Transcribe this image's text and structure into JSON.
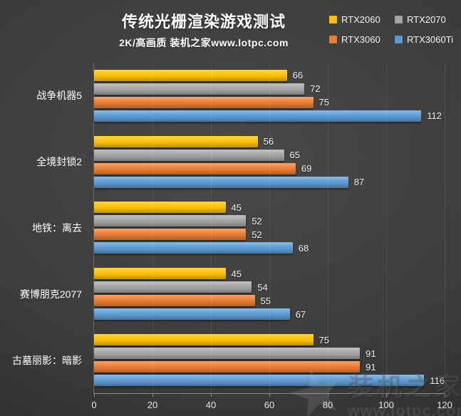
{
  "header": {
    "title": "传统光栅渲染游戏测试",
    "subtitle": "2K/高画质 装机之家www.lotpc.com"
  },
  "chart_data": {
    "type": "bar",
    "orientation": "horizontal",
    "title": "传统光栅渲染游戏测试",
    "subtitle": "2K/高画质 装机之家www.lotpc.com",
    "categories": [
      "战争机器5",
      "全境封锁2",
      "地铁：离去",
      "赛博朋克2077",
      "古墓丽影：暗影"
    ],
    "series": [
      {
        "name": "RTX2060",
        "color": "#FFC000",
        "values": [
          66,
          56,
          45,
          45,
          75
        ]
      },
      {
        "name": "RTX2070",
        "color": "#A5A5A5",
        "values": [
          72,
          65,
          52,
          54,
          91
        ]
      },
      {
        "name": "RTX3060",
        "color": "#ED7D31",
        "values": [
          75,
          69,
          52,
          55,
          91
        ]
      },
      {
        "name": "RTX3060Ti",
        "color": "#5B9BD5",
        "values": [
          112,
          87,
          68,
          67,
          116
        ]
      }
    ],
    "xlabel": "",
    "ylabel": "",
    "xlim": [
      0,
      120
    ],
    "xticks": [
      0,
      20,
      40,
      60,
      80,
      100,
      120
    ],
    "grid": true,
    "legend_position": "top-right",
    "value_labels": true,
    "background": "#3c3c3c",
    "text_color": "#ffffff",
    "gridline_color": "#4e4e4e"
  },
  "watermark": {
    "logo_icon": "star-icon",
    "name": "装机之家",
    "url": "www.lotpc.com"
  }
}
